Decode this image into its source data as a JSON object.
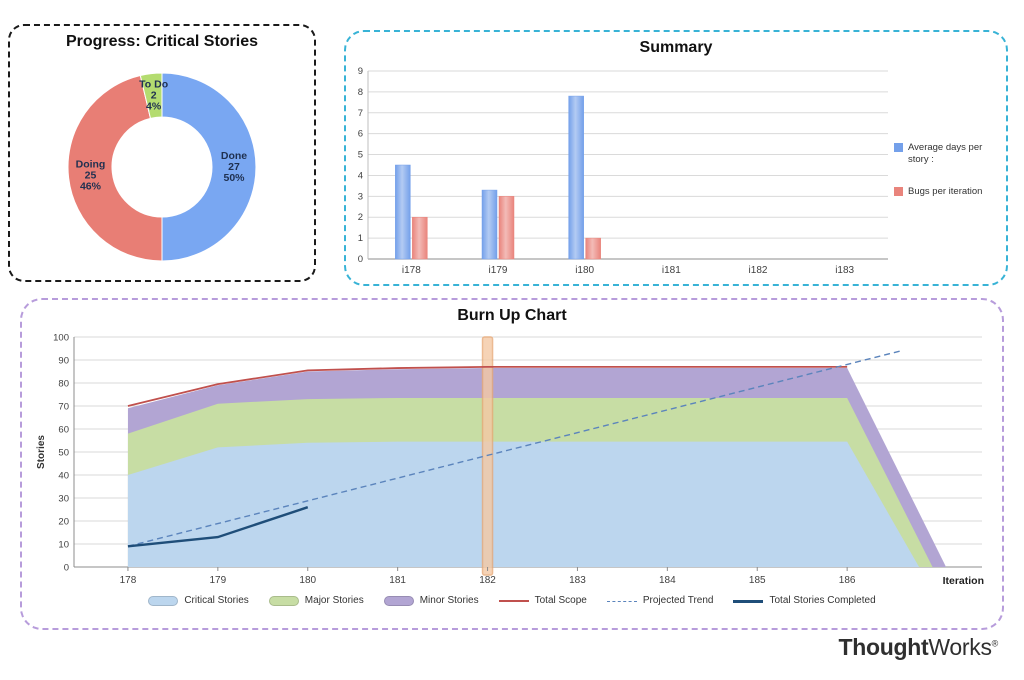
{
  "branding": {
    "thought": "Thought",
    "works": "Works",
    "registered": "®"
  },
  "chart_data": [
    {
      "type": "pie",
      "donut": true,
      "title": "Progress: Critical Stories",
      "label_color": "#1F3050",
      "segments": [
        {
          "label": "Done",
          "value": 27,
          "pct": "50%",
          "color": "#79A7F2"
        },
        {
          "label": "Doing",
          "value": 25,
          "pct": "46%",
          "color": "#E87E75"
        },
        {
          "label": "To Do",
          "value": 2,
          "pct": "4%",
          "color": "#B4DC70"
        }
      ]
    },
    {
      "type": "bar",
      "title": "Summary",
      "categories": [
        "i178",
        "i179",
        "i180",
        "i181",
        "i182",
        "i183"
      ],
      "series": [
        {
          "name": "Average days per story :",
          "color": "#74A0EA",
          "values": [
            4.5,
            3.3,
            7.8,
            0,
            0,
            0
          ]
        },
        {
          "name": "Bugs per iteration",
          "color": "#E9847C",
          "values": [
            2,
            3,
            1,
            0,
            0,
            0
          ]
        }
      ],
      "ylim": [
        0,
        9
      ],
      "ytick_step": 1,
      "grid": true,
      "legend_position": "right"
    },
    {
      "type": "area",
      "title": "Burn Up Chart",
      "xlabel": "Iteration",
      "ylabel": "Stories",
      "xlim": [
        177.4,
        187.5
      ],
      "ylim": [
        0,
        100
      ],
      "xticks": [
        178,
        179,
        180,
        181,
        182,
        183,
        184,
        185,
        186
      ],
      "ytick_step": 10,
      "grid": true,
      "legend_position": "bottom",
      "areas": [
        {
          "name": "Critical Stories",
          "color": "#BCD6EE",
          "points": [
            [
              178,
              40
            ],
            [
              179,
              52
            ],
            [
              180,
              54
            ],
            [
              181,
              54.5
            ],
            [
              182,
              54.5
            ],
            [
              183,
              54.5
            ],
            [
              184,
              54.5
            ],
            [
              185,
              54.5
            ],
            [
              186,
              54.5
            ],
            [
              186.8,
              0
            ]
          ]
        },
        {
          "name": "Major Stories",
          "color": "#C7DDA4",
          "points": [
            [
              178,
              58
            ],
            [
              179,
              71
            ],
            [
              180,
              73
            ],
            [
              181,
              73.5
            ],
            [
              182,
              73.5
            ],
            [
              183,
              73.5
            ],
            [
              184,
              73.5
            ],
            [
              185,
              73.5
            ],
            [
              186,
              73.5
            ],
            [
              186.95,
              0
            ]
          ]
        },
        {
          "name": "Minor Stories",
          "color": "#B2A5D3",
          "points": [
            [
              178,
              69
            ],
            [
              179,
              79
            ],
            [
              180,
              85
            ],
            [
              181,
              86
            ],
            [
              182,
              86.5
            ],
            [
              183,
              86.5
            ],
            [
              184,
              86.5
            ],
            [
              185,
              86.5
            ],
            [
              186,
              86.5
            ],
            [
              187.1,
              0
            ]
          ]
        }
      ],
      "lines": [
        {
          "name": "Total Scope",
          "color": "#C0504D",
          "dashed": false,
          "width": 1.8,
          "points": [
            [
              178,
              70
            ],
            [
              179,
              79.5
            ],
            [
              180,
              85.5
            ],
            [
              181,
              86.5
            ],
            [
              182,
              87
            ],
            [
              183,
              87
            ],
            [
              184,
              87
            ],
            [
              185,
              87
            ],
            [
              186,
              87
            ]
          ]
        },
        {
          "name": "Projected Trend",
          "color": "#5B84BC",
          "dashed": true,
          "width": 1.4,
          "points": [
            [
              178,
              9
            ],
            [
              186.6,
              94
            ]
          ]
        },
        {
          "name": "Total Stories Completed",
          "color": "#1F4E79",
          "dashed": false,
          "width": 2.4,
          "points": [
            [
              178,
              9
            ],
            [
              179,
              13
            ],
            [
              180,
              26
            ]
          ]
        }
      ],
      "highlight": {
        "x": 182,
        "fill": "#F5C9A4",
        "border": "#E8A977"
      }
    }
  ]
}
